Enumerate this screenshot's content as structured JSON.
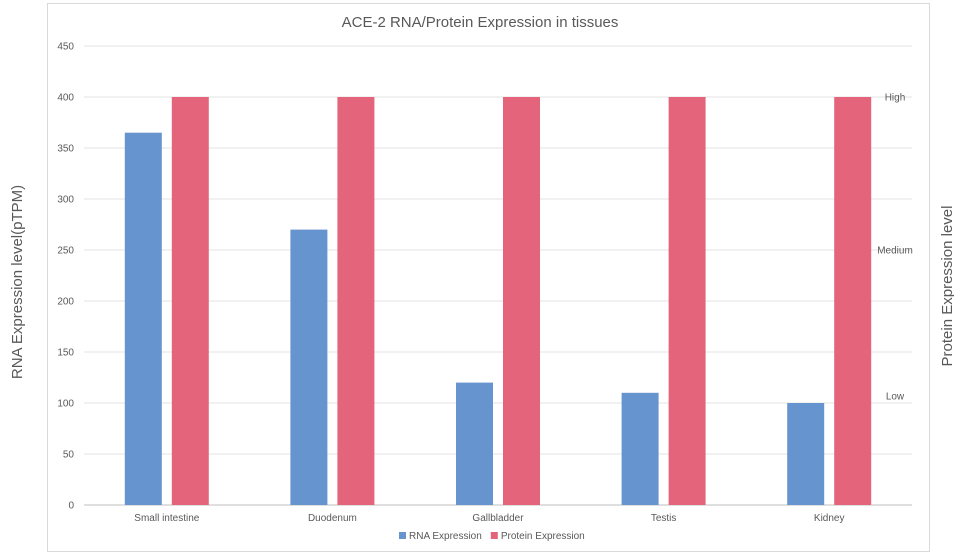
{
  "chart_data": {
    "type": "bar",
    "title": "ACE-2 RNA/Protein Expression in tissues",
    "categories": [
      "Small intestine",
      "Duodenum",
      "Gallbladder",
      "Testis",
      "Kidney"
    ],
    "series": [
      {
        "name": "RNA Expression",
        "values": [
          365,
          270,
          120,
          110,
          100
        ],
        "color": "#6694cf"
      },
      {
        "name": "Protein Expression",
        "values": [
          400,
          400,
          400,
          400,
          400
        ],
        "color": "#e4657b"
      }
    ],
    "ylabel": "RNA Expression level(pTPM)",
    "y2label": "Protein Expression level",
    "ylim": [
      0,
      450
    ],
    "yticks": [
      0,
      50,
      100,
      150,
      200,
      250,
      300,
      350,
      400,
      450
    ],
    "y2ticks": [
      {
        "label": "High",
        "value": 400
      },
      {
        "label": "Medium",
        "value": 250
      },
      {
        "label": "Low",
        "value": 107
      }
    ],
    "grid": true,
    "legend_position": "bottom"
  }
}
